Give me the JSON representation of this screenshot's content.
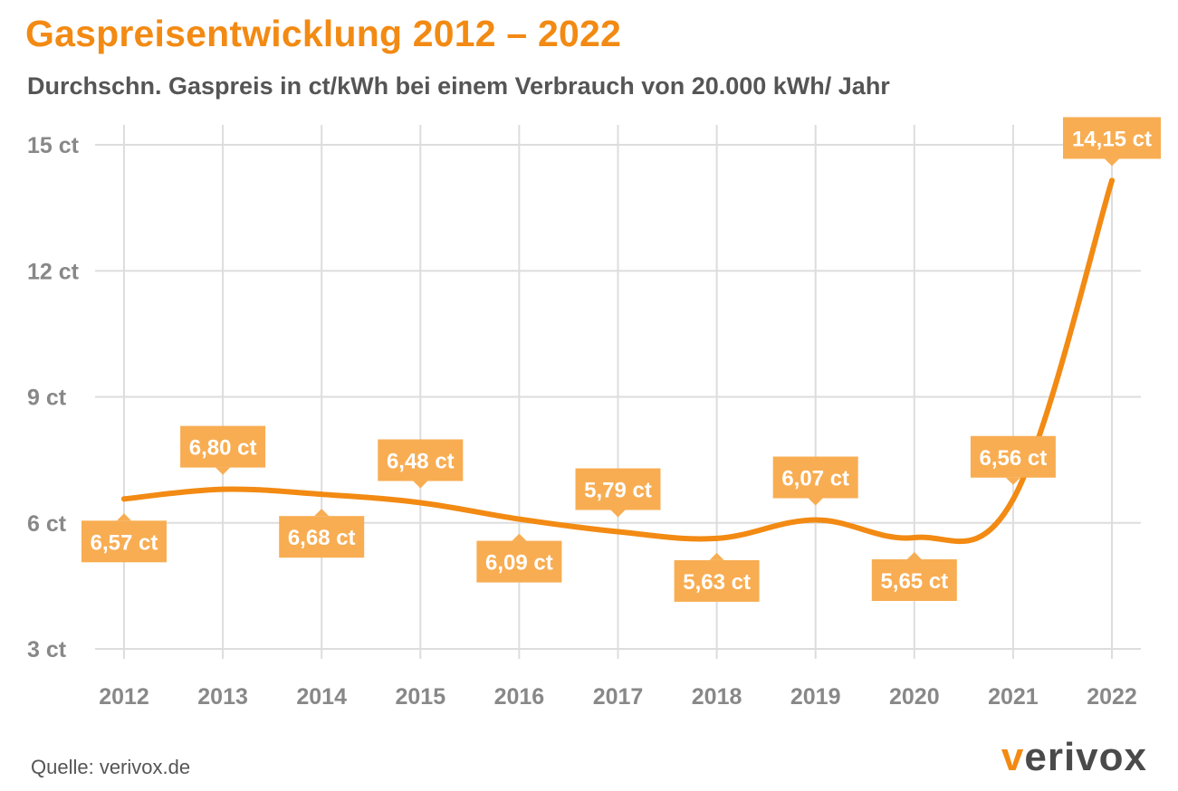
{
  "header": {
    "title": "Gaspreisentwicklung 2012 – 2022",
    "subtitle": "Durchschn. Gaspreis in ct/kWh bei einem Verbrauch von 20.000 kWh/ Jahr"
  },
  "footer": {
    "source": "Quelle: verivox.de",
    "logo_text": "verivox"
  },
  "colors": {
    "accent": "#f28a13",
    "label_bg": "#f8ad52",
    "grid": "#dddddd",
    "axis_text": "#888888",
    "text": "#555555"
  },
  "chart_data": {
    "type": "line",
    "title": "Gaspreisentwicklung 2012 – 2022",
    "subtitle": "Durchschn. Gaspreis in ct/kWh bei einem Verbrauch von 20.000 kWh/ Jahr",
    "xlabel": "",
    "ylabel": "",
    "categories": [
      "2012",
      "2013",
      "2014",
      "2015",
      "2016",
      "2017",
      "2018",
      "2019",
      "2020",
      "2021",
      "2022"
    ],
    "series": [
      {
        "values": [
          6.57,
          6.8,
          6.68,
          6.48,
          6.09,
          5.79,
          5.63,
          6.07,
          5.65,
          6.56,
          14.15
        ],
        "data_labels": [
          "6,57 ct",
          "6,80 ct",
          "6,68 ct",
          "6,48 ct",
          "6,09 ct",
          "5,79 ct",
          "5,63 ct",
          "6,07 ct",
          "5,65 ct",
          "6,56 ct",
          "14,15 ct"
        ],
        "label_positions": [
          "below",
          "above",
          "below",
          "above",
          "below",
          "above",
          "below",
          "above",
          "below",
          "above",
          "above"
        ]
      }
    ],
    "ylim": [
      3,
      15
    ],
    "yticks": [
      3,
      6,
      9,
      12,
      15
    ],
    "ytick_labels": [
      "3 ct",
      "6 ct",
      "9 ct",
      "12 ct",
      "15 ct"
    ],
    "grid": true,
    "legend": "none"
  }
}
